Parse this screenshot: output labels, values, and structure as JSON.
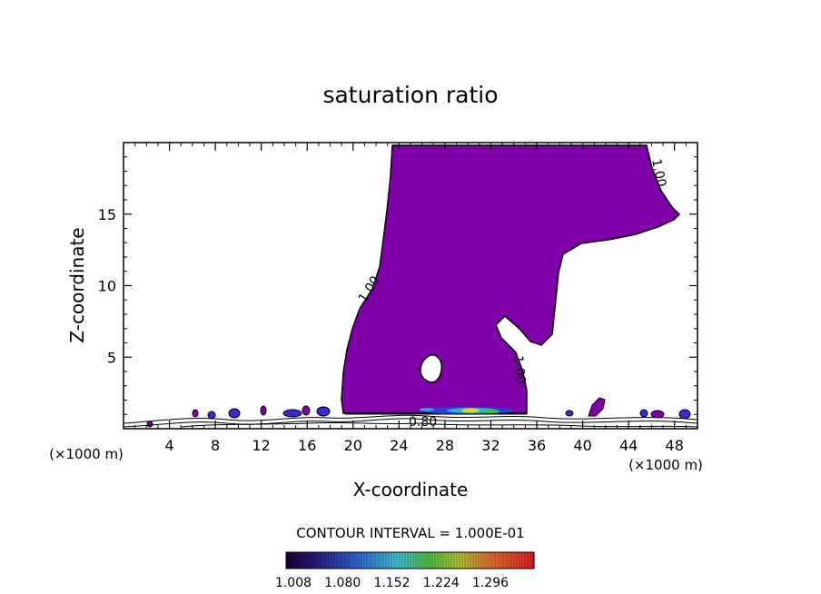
{
  "title": "saturation ratio",
  "chart_data": {
    "type": "heatmap",
    "title": "saturation ratio",
    "xlabel": "X-coordinate",
    "ylabel": "Z-coordinate",
    "x_unit": "(×1000 m)",
    "xlim": [
      0,
      50
    ],
    "ylim": [
      0,
      20
    ],
    "x_ticks": [
      4,
      8,
      12,
      16,
      20,
      24,
      28,
      32,
      36,
      40,
      44,
      48
    ],
    "y_ticks": [
      5,
      10,
      15
    ],
    "contour_labels": [
      "1.00",
      "1.00",
      "1.00",
      "0.80"
    ],
    "contour_interval_text": "CONTOUR INTERVAL = 1.000E-01",
    "colorbar": {
      "tick_labels": [
        "1.008",
        "1.080",
        "1.152",
        "1.224",
        "1.296"
      ],
      "range": [
        1.0,
        1.3
      ]
    },
    "fill_color": "#7f00a8"
  }
}
